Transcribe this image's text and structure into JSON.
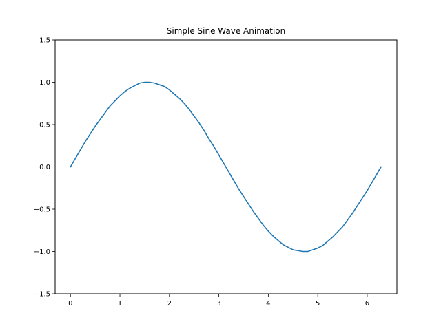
{
  "chart_data": {
    "type": "line",
    "title": "Simple Sine Wave Animation",
    "xlabel": "",
    "ylabel": "",
    "xlim": [
      -0.31,
      6.6
    ],
    "ylim": [
      -1.5,
      1.5
    ],
    "x_ticks": [
      0,
      1,
      2,
      3,
      4,
      5,
      6
    ],
    "x_tick_labels": [
      "0",
      "1",
      "2",
      "3",
      "4",
      "5",
      "6"
    ],
    "y_ticks": [
      -1.5,
      -1.0,
      -0.5,
      0.0,
      0.5,
      1.0,
      1.5
    ],
    "y_tick_labels": [
      "−1.5",
      "−1.0",
      "−0.5",
      "0.0",
      "0.5",
      "1.0",
      "1.5"
    ],
    "grid": false,
    "legend": "none",
    "series": [
      {
        "color": "#1f77b4",
        "x": [
          0.0,
          0.1,
          0.2,
          0.3,
          0.4,
          0.5,
          0.6,
          0.7,
          0.8,
          0.9,
          1.0,
          1.1,
          1.2,
          1.3,
          1.4,
          1.5,
          1.6,
          1.7,
          1.8,
          1.9,
          2.0,
          2.1,
          2.2,
          2.3,
          2.4,
          2.5,
          2.6,
          2.7,
          2.8,
          2.9,
          3.0,
          3.1,
          3.2,
          3.3,
          3.4,
          3.5,
          3.6,
          3.7,
          3.8,
          3.9,
          4.0,
          4.1,
          4.2,
          4.3,
          4.4,
          4.5,
          4.6,
          4.7,
          4.8,
          4.9,
          5.0,
          5.1,
          5.2,
          5.3,
          5.4,
          5.5,
          5.6,
          5.7,
          5.8,
          5.9,
          6.0,
          6.1,
          6.2,
          6.28
        ],
        "y": [
          0.0,
          0.1,
          0.2,
          0.3,
          0.39,
          0.48,
          0.56,
          0.64,
          0.72,
          0.78,
          0.84,
          0.89,
          0.93,
          0.96,
          0.99,
          1.0,
          1.0,
          0.99,
          0.97,
          0.95,
          0.91,
          0.86,
          0.81,
          0.75,
          0.68,
          0.6,
          0.52,
          0.43,
          0.33,
          0.24,
          0.14,
          0.04,
          -0.06,
          -0.16,
          -0.26,
          -0.35,
          -0.44,
          -0.53,
          -0.61,
          -0.69,
          -0.76,
          -0.82,
          -0.87,
          -0.92,
          -0.95,
          -0.98,
          -0.99,
          -1.0,
          -1.0,
          -0.98,
          -0.96,
          -0.93,
          -0.88,
          -0.83,
          -0.77,
          -0.71,
          -0.63,
          -0.55,
          -0.46,
          -0.37,
          -0.28,
          -0.18,
          -0.08,
          0.0
        ]
      }
    ]
  }
}
